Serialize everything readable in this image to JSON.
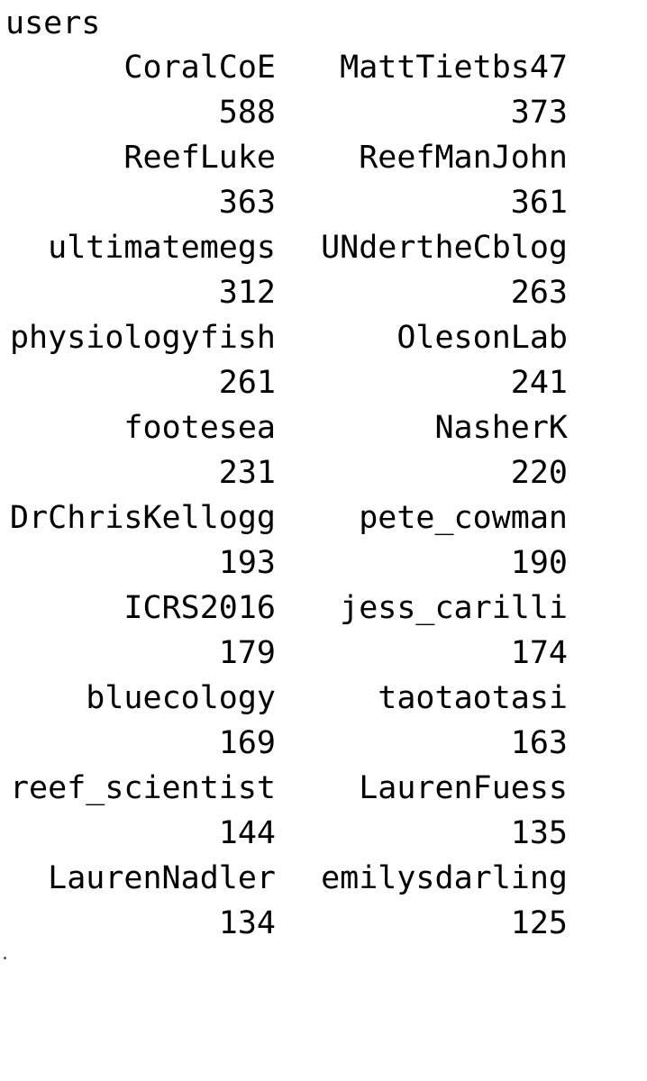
{
  "console": {
    "variable_name": "users",
    "rows": [
      {
        "c1": "CoralCoE",
        "c2": "MattTietbs47"
      },
      {
        "c1": "588",
        "c2": "373"
      },
      {
        "c1": "ReefLuke",
        "c2": "ReefManJohn"
      },
      {
        "c1": "363",
        "c2": "361"
      },
      {
        "c1": "ultimatemegs",
        "c2": "UNdertheCblog"
      },
      {
        "c1": "312",
        "c2": "263"
      },
      {
        "c1": "physiologyfish",
        "c2": "OlesonLab"
      },
      {
        "c1": "261",
        "c2": "241"
      },
      {
        "c1": "footesea",
        "c2": "NasherK"
      },
      {
        "c1": "231",
        "c2": "220"
      },
      {
        "c1": "DrChrisKellogg",
        "c2": "pete_cowman"
      },
      {
        "c1": "193",
        "c2": "190"
      },
      {
        "c1": "ICRS2016",
        "c2": "jess_carilli"
      },
      {
        "c1": "179",
        "c2": "174"
      },
      {
        "c1": "bluecology",
        "c2": "taotaotasi"
      },
      {
        "c1": "169",
        "c2": "163"
      },
      {
        "c1": "reef_scientist",
        "c2": "LaurenFuess"
      },
      {
        "c1": "144",
        "c2": "135"
      },
      {
        "c1": "LaurenNadler",
        "c2": "emilysdarling"
      },
      {
        "c1": "134",
        "c2": "125"
      }
    ]
  }
}
